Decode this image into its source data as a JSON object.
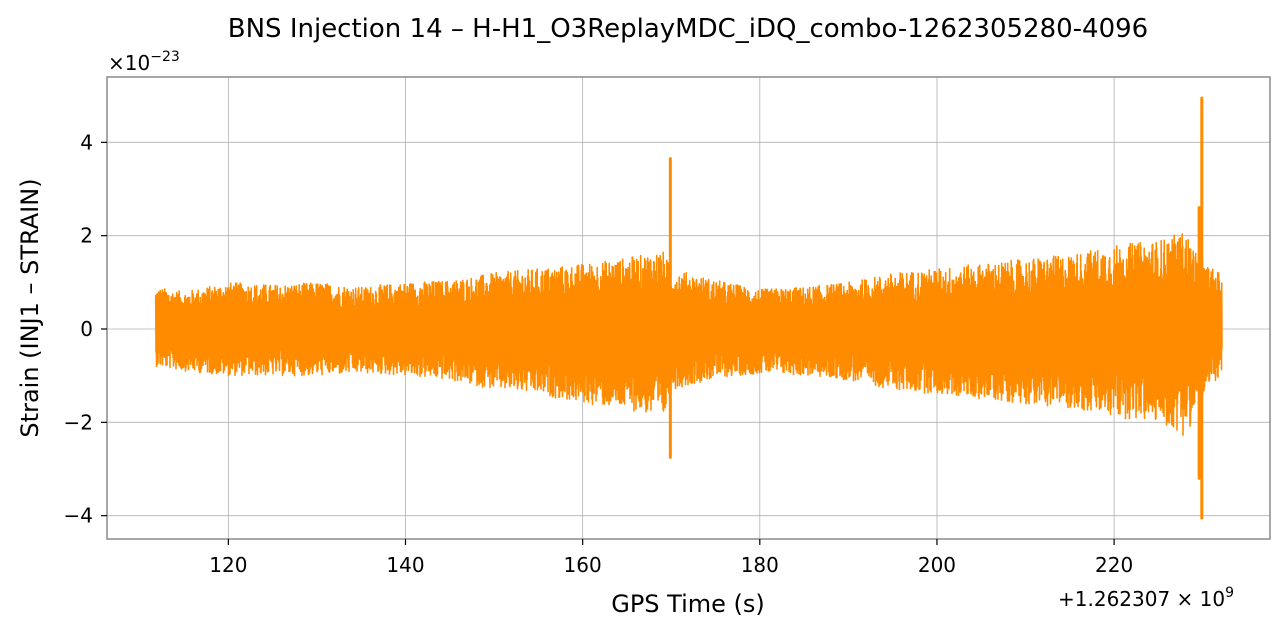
{
  "chart_data": {
    "type": "line",
    "title": "BNS Injection 14 – H-H1_O3ReplayMDC_iDQ_combo-1262305280-4096",
    "xlabel": "GPS Time (s)",
    "ylabel": "Strain (INJ1 – STRAIN)",
    "x_offset_label": "+1.262307 × 10",
    "x_offset_exponent": "9",
    "y_multiplier_label": "×10",
    "y_multiplier_exponent": "−23",
    "xlim": [
      106.3,
      237.6
    ],
    "ylim": [
      -4.5,
      5.4
    ],
    "xticks": [
      120,
      140,
      160,
      180,
      200,
      220
    ],
    "xtick_labels": [
      "120",
      "140",
      "160",
      "180",
      "200",
      "220"
    ],
    "yticks": [
      -4,
      -2,
      0,
      2,
      4
    ],
    "ytick_labels": [
      "−4",
      "−2",
      "0",
      "2",
      "4"
    ],
    "grid": true,
    "series": [
      {
        "color": "#ff8c00",
        "x_start": 111.8,
        "x_end": 232.2,
        "envelope": [
          {
            "x": 111.8,
            "max": 0.9,
            "min": -0.8
          },
          {
            "x": 115,
            "max": 0.8,
            "min": -0.9
          },
          {
            "x": 120,
            "max": 1.0,
            "min": -1.0
          },
          {
            "x": 125,
            "max": 0.95,
            "min": -1.0
          },
          {
            "x": 130,
            "max": 1.0,
            "min": -1.0
          },
          {
            "x": 135,
            "max": 0.9,
            "min": -0.95
          },
          {
            "x": 140,
            "max": 1.0,
            "min": -1.0
          },
          {
            "x": 145,
            "max": 1.05,
            "min": -1.1
          },
          {
            "x": 150,
            "max": 1.2,
            "min": -1.3
          },
          {
            "x": 155,
            "max": 1.3,
            "min": -1.4
          },
          {
            "x": 160,
            "max": 1.4,
            "min": -1.6
          },
          {
            "x": 164,
            "max": 1.5,
            "min": -1.7
          },
          {
            "x": 167,
            "max": 1.6,
            "min": -1.8
          },
          {
            "x": 169,
            "max": 1.7,
            "min": -2.0
          },
          {
            "x": 170,
            "max": 1.3,
            "min": -1.3
          },
          {
            "x": 175,
            "max": 1.05,
            "min": -1.05
          },
          {
            "x": 180,
            "max": 0.85,
            "min": -0.95
          },
          {
            "x": 185,
            "max": 0.9,
            "min": -1.0
          },
          {
            "x": 190,
            "max": 1.0,
            "min": -1.1
          },
          {
            "x": 195,
            "max": 1.2,
            "min": -1.3
          },
          {
            "x": 200,
            "max": 1.3,
            "min": -1.4
          },
          {
            "x": 205,
            "max": 1.4,
            "min": -1.5
          },
          {
            "x": 210,
            "max": 1.5,
            "min": -1.6
          },
          {
            "x": 215,
            "max": 1.6,
            "min": -1.7
          },
          {
            "x": 220,
            "max": 1.8,
            "min": -1.9
          },
          {
            "x": 225,
            "max": 1.9,
            "min": -2.0
          },
          {
            "x": 228,
            "max": 2.1,
            "min": -2.3
          },
          {
            "x": 230,
            "max": 1.4,
            "min": -1.5
          },
          {
            "x": 232.2,
            "max": 1.2,
            "min": -0.9
          }
        ],
        "spikes": [
          {
            "x": 169.9,
            "max": 3.65,
            "min": -2.75
          },
          {
            "x": 229.9,
            "max": 4.95,
            "min": -4.05
          },
          {
            "x": 229.6,
            "max": 2.6,
            "min": -3.2
          }
        ]
      }
    ]
  }
}
